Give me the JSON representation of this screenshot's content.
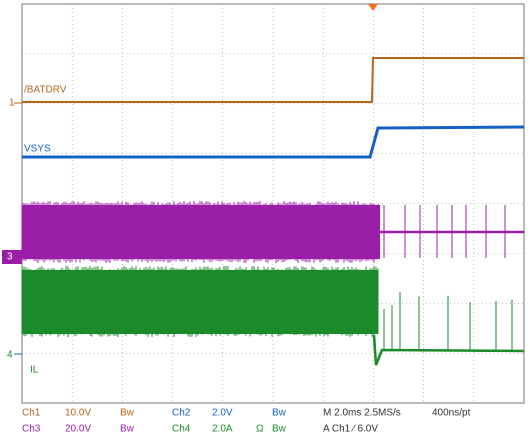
{
  "traces": [
    {
      "label": "/BATDRV"
    },
    {
      "label": "VSYS"
    },
    {
      "label": "IL"
    }
  ],
  "markers": [
    "1",
    "3",
    "4"
  ],
  "settings": {
    "row1": [
      "Ch1",
      "10.0V",
      "Bw",
      "Ch2",
      "2.0V",
      "Bw",
      "M 2.0ms 2.5MS/s",
      "400ns/pt"
    ],
    "row2": [
      "Ch3",
      "20.0V",
      "Bw",
      "Ch4",
      "2.0A",
      "Ω",
      "Bw",
      "A Ch1 ∕ 6.0V"
    ]
  }
}
